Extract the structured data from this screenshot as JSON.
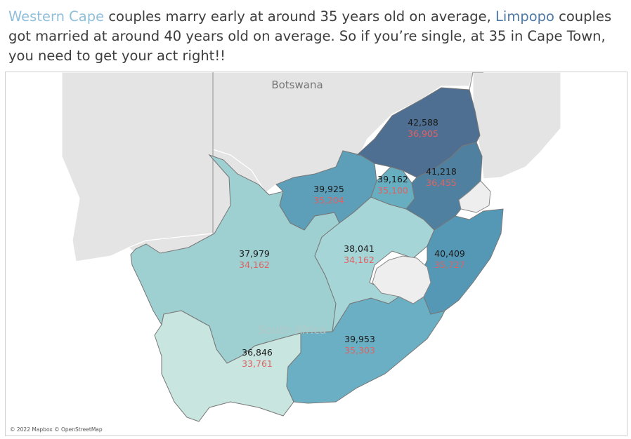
{
  "title": {
    "wc_name": "Western Cape",
    "part1": " couples marry early at around 35 years old on average, ",
    "lp_name": "Limpopo",
    "part2": " couples got married at around 40 years old on average. So if you’re single, at 35 in Cape Town, you need to get your act right!!"
  },
  "colors": {
    "wc_highlight": "#8fbfda",
    "lp_highlight": "#4e7aa6",
    "secondary_value": "#e06262"
  },
  "map": {
    "country_label": "Botswana",
    "sa_label": "South Africa",
    "attribution": "© 2022 Mapbox © OpenStreetMap",
    "provinces": [
      {
        "id": "limpopo",
        "fill": "#4f6f92",
        "v1": "42,588",
        "v2": "36,905"
      },
      {
        "id": "mpumalanga",
        "fill": "#50809f",
        "v1": "41,218",
        "v2": "36,455"
      },
      {
        "id": "gauteng",
        "fill": "#67aec0",
        "v1": "39,162",
        "v2": "35,100"
      },
      {
        "id": "north-west",
        "fill": "#5d9eb8",
        "v1": "39,925",
        "v2": "35,204"
      },
      {
        "id": "kwazulu-natal",
        "fill": "#5598b6",
        "v1": "40,409",
        "v2": "35,727"
      },
      {
        "id": "free-state",
        "fill": "#a6d5d8",
        "v1": "38,041",
        "v2": "34,162"
      },
      {
        "id": "northern-cape",
        "fill": "#9ecfd1",
        "v1": "37,979",
        "v2": "34,162"
      },
      {
        "id": "eastern-cape",
        "fill": "#6aafc3",
        "v1": "39,953",
        "v2": "35,303"
      },
      {
        "id": "western-cape",
        "fill": "#c8e6df",
        "v1": "36,846",
        "v2": "33,761"
      }
    ]
  }
}
